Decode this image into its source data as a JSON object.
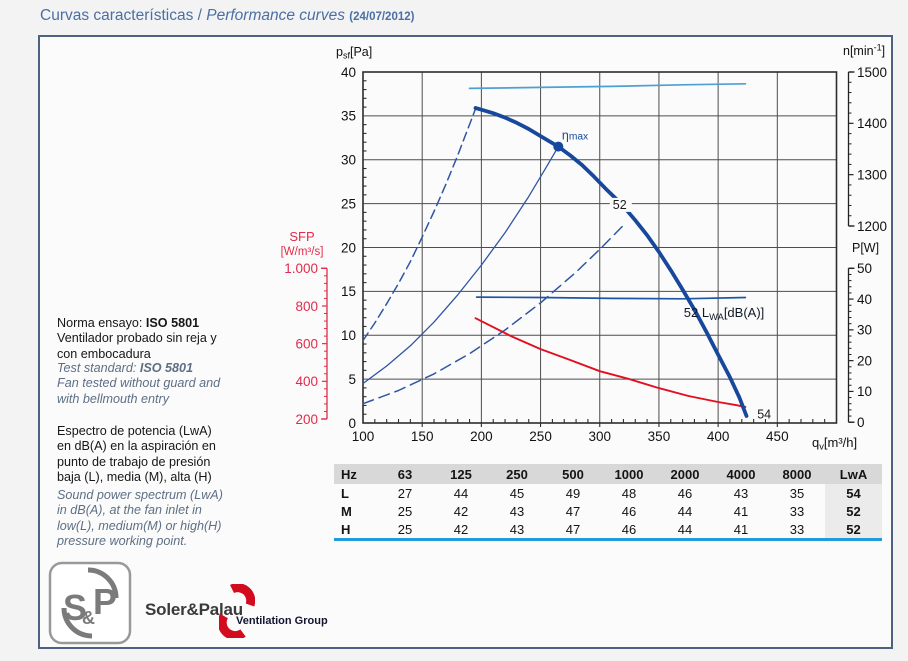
{
  "title": {
    "main": "Curvas características / ",
    "italic": "Performance curves ",
    "date": "(24/07/2012)"
  },
  "info": {
    "norma_prefix": "Norma ensayo: ",
    "norma_bold": "ISO 5801",
    "norma_rest": "Ventilador probado sin reja y\ncon embocadura",
    "test_prefix": "Test standard: ",
    "test_bold": "ISO 5801",
    "test_rest": "Fan tested without guard and\nwith bellmouth entry",
    "espectro": "Espectro de potencia (LwA)\nen dB(A) en la aspiración en\npunto de trabajo de presión\nbaja (L), media (M), alta (H)",
    "sound": "Sound power spectrum (LwA)\nin dB(A), at the fan inlet in\nlow(L), medium(M) or high(H)\npressure working point."
  },
  "colors": {
    "title_blue": "#4a6fa5",
    "panel_border": "#4e6181",
    "pressure_curve": "#17489c",
    "system_curve": "#2f55a4",
    "speed_curve": "#4fa0d2",
    "lwa_curve": "#2055a5",
    "sfp_curve": "#e30e1f",
    "sfp_axis": "#e22b4a",
    "table_header_bg": "#d8d8d8",
    "table_lwa_bg": "#ebebeb",
    "table_underline": "#1f9cd9",
    "logo_gray": "#7b7b7b",
    "logo_red": "#d30b1e"
  },
  "chart_data": {
    "type": "line",
    "x": {
      "label_parts": [
        {
          "t": "q"
        },
        {
          "t": "v",
          "dy": 2.5,
          "s": 0.72
        },
        {
          "t": "[m³/h]"
        }
      ],
      "range": [
        100,
        500
      ],
      "tick_labels": [
        100,
        150,
        200,
        250,
        300,
        350,
        400,
        450
      ],
      "minor_step": 10
    },
    "y_left": {
      "label_parts": [
        {
          "t": "p"
        },
        {
          "t": "sf",
          "dy": 2.5,
          "s": 0.72
        },
        {
          "t": "[Pa]"
        }
      ],
      "range": [
        0,
        40
      ],
      "ticks": [
        0,
        5,
        10,
        15,
        20,
        25,
        30,
        35,
        40
      ]
    },
    "y_right_speed": {
      "label_parts": [
        {
          "t": "n[min"
        },
        {
          "t": "-1",
          "dy": -4.5,
          "s": 0.72
        },
        {
          "t": "]"
        }
      ],
      "range": [
        1200,
        1500
      ],
      "ticks": [
        1500,
        1400,
        1300,
        1200
      ],
      "minor_step": 20
    },
    "y_right_power": {
      "label": "P[W]",
      "range": [
        0,
        50
      ],
      "ticks": [
        50,
        40,
        30,
        20,
        10,
        0
      ],
      "minor_step": 2
    },
    "y_sfp": {
      "label1": "SFP",
      "label2": "[W/m³/s]",
      "range": [
        200,
        1000
      ],
      "ticks": [
        {
          "v": 1000,
          "t": "1.000"
        },
        {
          "v": 800,
          "t": "800"
        },
        {
          "v": 600,
          "t": "600"
        },
        {
          "v": 400,
          "t": "400"
        },
        {
          "v": 200,
          "t": "200"
        }
      ],
      "minor_step": 40
    },
    "series": [
      {
        "name": "system-curve-high-dashed",
        "axis": "psf",
        "color": "#2f55a4",
        "width": 1.5,
        "dash": "9 5",
        "points": [
          [
            100,
            9.4
          ],
          [
            110,
            11.4
          ],
          [
            120,
            13.6
          ],
          [
            130,
            15.9
          ],
          [
            140,
            18.4
          ],
          [
            150,
            21.2
          ],
          [
            160,
            24.1
          ],
          [
            170,
            27.2
          ],
          [
            180,
            30.5
          ],
          [
            190,
            34.0
          ],
          [
            195,
            35.8
          ]
        ]
      },
      {
        "name": "system-curve-medium",
        "axis": "psf",
        "color": "#2f55a4",
        "width": 1.3,
        "points": [
          [
            100,
            4.5
          ],
          [
            120,
            6.5
          ],
          [
            140,
            8.8
          ],
          [
            160,
            11.5
          ],
          [
            180,
            14.6
          ],
          [
            200,
            18.0
          ],
          [
            220,
            21.7
          ],
          [
            240,
            25.8
          ],
          [
            255,
            29.2
          ],
          [
            265,
            31.5
          ]
        ]
      },
      {
        "name": "system-curve-low-dashed",
        "axis": "psf",
        "color": "#2f55a4",
        "width": 1.5,
        "dash": "11 6",
        "points": [
          [
            100,
            2.2
          ],
          [
            130,
            3.7
          ],
          [
            160,
            5.6
          ],
          [
            190,
            7.9
          ],
          [
            220,
            10.6
          ],
          [
            250,
            13.7
          ],
          [
            280,
            17.2
          ],
          [
            300,
            19.8
          ],
          [
            322,
            22.8
          ]
        ]
      },
      {
        "name": "lwa-52-curve",
        "axis": "psf",
        "color": "#2055a5",
        "width": 1.7,
        "points": [
          [
            196,
            14.35
          ],
          [
            250,
            14.3
          ],
          [
            310,
            14.2
          ],
          [
            370,
            14.15
          ],
          [
            423,
            14.3
          ]
        ]
      },
      {
        "name": "speed-curve",
        "axis": "n",
        "color": "#4fa0d2",
        "width": 1.7,
        "points": [
          [
            190,
            1468
          ],
          [
            250,
            1470
          ],
          [
            310,
            1472
          ],
          [
            370,
            1475
          ],
          [
            423,
            1477
          ]
        ]
      },
      {
        "name": "sfp-curve",
        "axis": "sfp",
        "color": "#e30e1f",
        "width": 1.9,
        "points": [
          [
            195,
            735
          ],
          [
            225,
            640
          ],
          [
            250,
            571
          ],
          [
            275,
            513
          ],
          [
            300,
            454
          ],
          [
            325,
            412
          ],
          [
            350,
            364
          ],
          [
            375,
            322
          ],
          [
            400,
            290
          ],
          [
            415,
            274
          ],
          [
            423,
            264
          ]
        ]
      },
      {
        "name": "static-pressure-curve",
        "axis": "psf",
        "color": "#17489c",
        "width": 3.8,
        "points": [
          [
            195,
            35.9
          ],
          [
            200,
            35.7
          ],
          [
            210,
            35.3
          ],
          [
            220,
            34.8
          ],
          [
            230,
            34.2
          ],
          [
            240,
            33.5
          ],
          [
            250,
            32.7
          ],
          [
            260,
            31.9
          ],
          [
            265,
            31.5
          ],
          [
            275,
            30.5
          ],
          [
            285,
            29.4
          ],
          [
            295,
            28.1
          ],
          [
            305,
            26.7
          ],
          [
            318,
            25.0
          ],
          [
            330,
            23.1
          ],
          [
            340,
            21.4
          ],
          [
            350,
            19.5
          ],
          [
            360,
            17.4
          ],
          [
            370,
            15.2
          ],
          [
            380,
            12.9
          ],
          [
            390,
            10.4
          ],
          [
            400,
            7.8
          ],
          [
            410,
            5.2
          ],
          [
            418,
            2.9
          ],
          [
            424,
            0.8
          ]
        ]
      }
    ],
    "marker": {
      "name": "eta-max-point",
      "x": 265,
      "y": 31.5,
      "color": "#17489c"
    },
    "annotations": [
      {
        "name": "eta-max-label",
        "x": 268,
        "y": 32.3,
        "size": 12.5,
        "color": "#17489c",
        "parts": [
          {
            "t": "η"
          },
          {
            "t": "max",
            "s": 0.82
          }
        ]
      },
      {
        "name": "curve-52-label",
        "x": 311,
        "y": 24.4,
        "size": 12.5,
        "color": "#1a1a1a",
        "bg": 22,
        "parts": [
          {
            "t": "52"
          }
        ]
      },
      {
        "name": "curve-54-label",
        "x": 433,
        "y": 0.5,
        "size": 12.5,
        "color": "#1a1a1a",
        "parts": [
          {
            "t": "54"
          }
        ]
      },
      {
        "name": "lwa-52-label",
        "x": 371,
        "y": 12.1,
        "size": 13,
        "color": "#111827",
        "parts": [
          {
            "t": "52 L"
          },
          {
            "t": "WA",
            "dy": 3,
            "s": 0.72
          },
          {
            "t": "[dB(A)]"
          }
        ]
      }
    ]
  },
  "table": {
    "headers": [
      "Hz",
      "63",
      "125",
      "250",
      "500",
      "1000",
      "2000",
      "4000",
      "8000",
      "LwA"
    ],
    "rows": [
      {
        "band": "L",
        "values": [
          "27",
          "44",
          "45",
          "49",
          "48",
          "46",
          "43",
          "35"
        ],
        "lwa": "54"
      },
      {
        "band": "M",
        "values": [
          "25",
          "42",
          "43",
          "47",
          "46",
          "44",
          "41",
          "33"
        ],
        "lwa": "52"
      },
      {
        "band": "H",
        "values": [
          "25",
          "42",
          "43",
          "47",
          "46",
          "44",
          "41",
          "33"
        ],
        "lwa": "52"
      }
    ]
  },
  "logo": {
    "s": "S",
    "amp": "&",
    "p": "P",
    "company": "Soler&Palau",
    "group": "Ventilation Group"
  }
}
